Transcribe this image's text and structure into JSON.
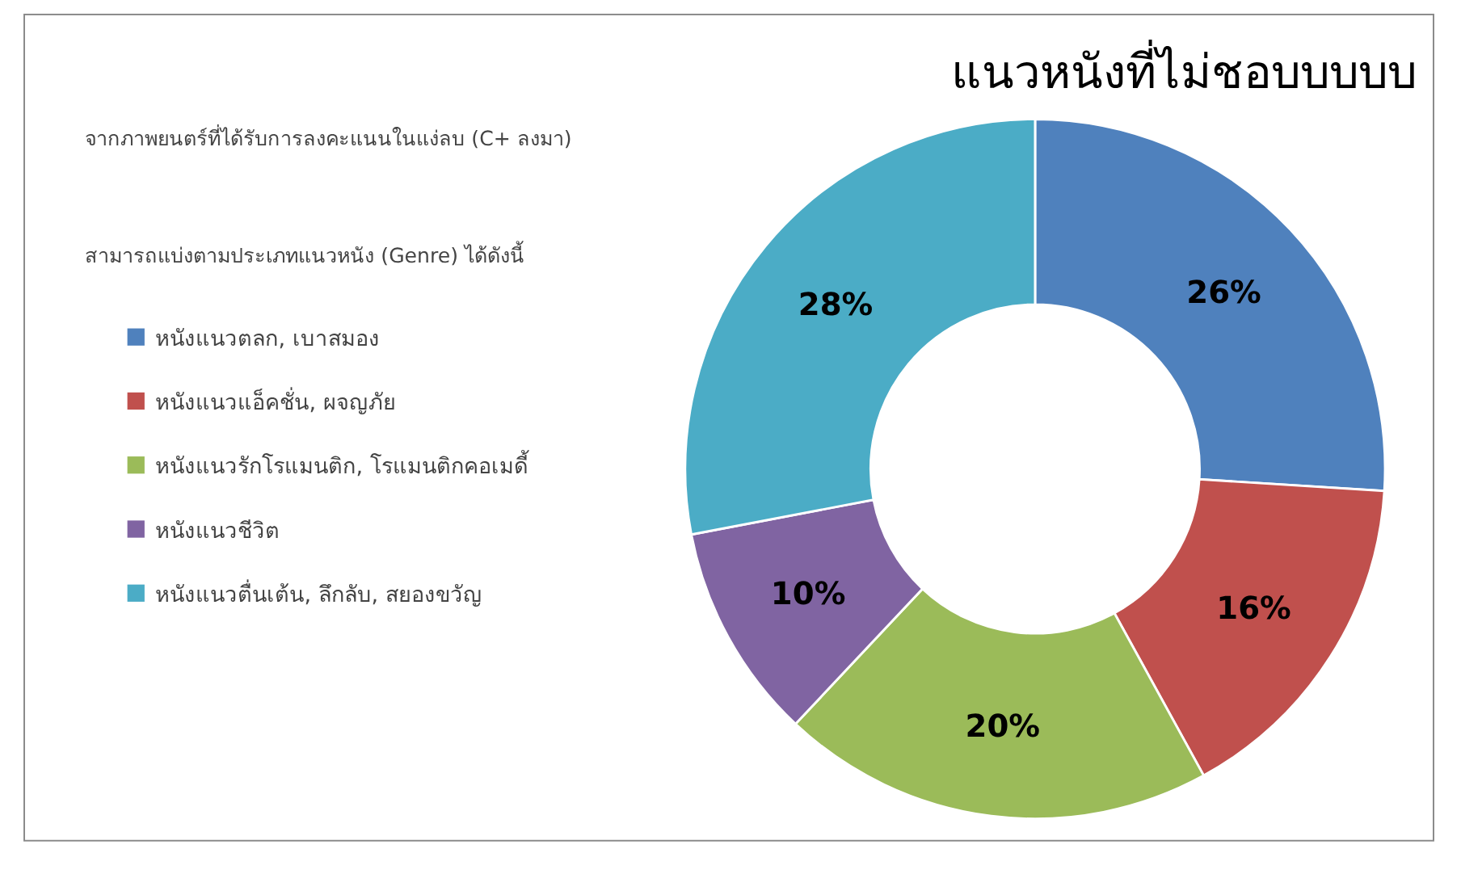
{
  "chart_data": {
    "type": "donut",
    "title": "แนวหนังที่ไม่ชอบบบบบ",
    "annotations": [
      "จากภาพยนตร์ที่ได้รับการลงคะแนนในแง่ลบ (C+ ลงมา)",
      "สามารถแบ่งตามประเภทแนวหนัง (Genre) ได้ดังนี้"
    ],
    "categories": [
      "หนังแนวตลก, เบาสมอง",
      "หนังแนวแอ็คชั่น, ผจญภัย",
      "หนังแนวรักโรแมนติก, โรแมนติกคอเมดี้",
      "หนังแนวชีวิต",
      "หนังแนวตื่นเต้น, ลึกลับ, สยองขวัญ"
    ],
    "values": [
      26,
      16,
      20,
      10,
      28
    ],
    "colors": [
      "#4f81bd",
      "#c0504d",
      "#9bbb59",
      "#8064a2",
      "#4bacc6"
    ],
    "value_labels": [
      "26%",
      "16%",
      "20%",
      "10%",
      "28%"
    ],
    "legend": "left"
  }
}
